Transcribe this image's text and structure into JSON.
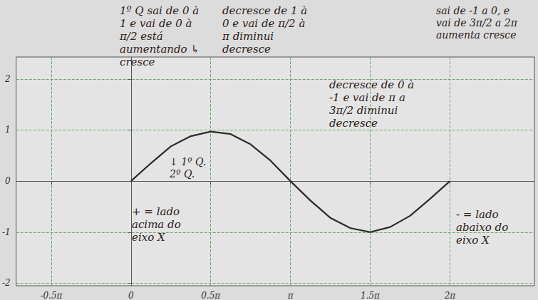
{
  "chart_data": {
    "type": "line",
    "x": [
      0,
      0.125,
      0.25,
      0.375,
      0.5,
      0.625,
      0.75,
      0.875,
      1,
      1.125,
      1.25,
      1.375,
      1.5,
      1.625,
      1.75,
      1.875,
      2
    ],
    "values": [
      0,
      0.35,
      0.68,
      0.88,
      0.97,
      0.92,
      0.72,
      0.4,
      0,
      -0.38,
      -0.72,
      -0.92,
      -1.0,
      -0.9,
      -0.68,
      -0.35,
      0
    ],
    "color": "#2b2b2b",
    "line_style": "solid",
    "marker": "none",
    "xlim": [
      -0.72,
      2.53
    ],
    "ylim": [
      -2.05,
      2.43
    ],
    "xticks": [
      {
        "value": -0.5,
        "label": "-0.5π"
      },
      0,
      {
        "value": 0.5,
        "label": "0.5π"
      },
      {
        "value": 1,
        "label": "π"
      },
      {
        "value": 1.5,
        "label": "1.5π"
      },
      {
        "value": 2,
        "label": "2π"
      }
    ],
    "yticks": [
      -2,
      -1,
      0,
      1,
      2
    ],
    "grid": true,
    "annotations": [
      "1º Q sai de 0 à 1 e vai de 0 à π/2 está aumentando ↳ cresce",
      "↓ 1º Q. 2º Q.",
      "decresce de 1 à 0 e vai de π/2 à π diminui decresce",
      "decresce de 0 à -1 e vai de π a 3π/2 diminui decresce",
      "sai de -1 a 0, e vai de 3π/2 a 2π aumenta cresce",
      "+ = lado acima do eixo X",
      "- = lado abaixo do eixo X"
    ]
  }
}
